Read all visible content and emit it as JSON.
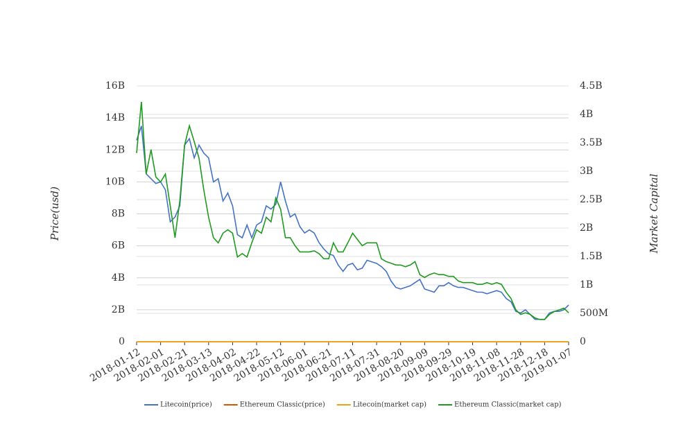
{
  "chart_data": {
    "type": "line",
    "y_label": "Price(usd)",
    "y2_label": "Market Capital",
    "x": [
      "2018-01-12",
      "2018-01-16",
      "2018-01-20",
      "2018-01-24",
      "2018-01-28",
      "2018-02-01",
      "2018-02-05",
      "2018-02-09",
      "2018-02-13",
      "2018-02-17",
      "2018-02-21",
      "2018-02-25",
      "2018-03-01",
      "2018-03-05",
      "2018-03-09",
      "2018-03-13",
      "2018-03-17",
      "2018-03-21",
      "2018-03-25",
      "2018-03-29",
      "2018-04-02",
      "2018-04-06",
      "2018-04-10",
      "2018-04-14",
      "2018-04-18",
      "2018-04-22",
      "2018-04-26",
      "2018-04-30",
      "2018-05-04",
      "2018-05-08",
      "2018-05-12",
      "2018-05-16",
      "2018-05-20",
      "2018-05-24",
      "2018-05-28",
      "2018-06-01",
      "2018-06-05",
      "2018-06-09",
      "2018-06-13",
      "2018-06-17",
      "2018-06-21",
      "2018-06-25",
      "2018-06-29",
      "2018-07-03",
      "2018-07-07",
      "2018-07-11",
      "2018-07-15",
      "2018-07-19",
      "2018-07-23",
      "2018-07-27",
      "2018-07-31",
      "2018-08-04",
      "2018-08-08",
      "2018-08-12",
      "2018-08-16",
      "2018-08-20",
      "2018-08-24",
      "2018-08-28",
      "2018-09-01",
      "2018-09-05",
      "2018-09-09",
      "2018-09-13",
      "2018-09-17",
      "2018-09-21",
      "2018-09-25",
      "2018-09-29",
      "2018-10-03",
      "2018-10-07",
      "2018-10-11",
      "2018-10-15",
      "2018-10-19",
      "2018-10-23",
      "2018-10-27",
      "2018-10-31",
      "2018-11-04",
      "2018-11-08",
      "2018-11-12",
      "2018-11-16",
      "2018-11-20",
      "2018-11-24",
      "2018-11-28",
      "2018-12-02",
      "2018-12-06",
      "2018-12-10",
      "2018-12-14",
      "2018-12-18",
      "2018-12-22",
      "2018-12-26",
      "2018-12-30",
      "2019-01-03",
      "2019-01-07"
    ],
    "xticks": [
      "2018-01-12",
      "2018-02-01",
      "2018-02-21",
      "2018-03-13",
      "2018-04-02",
      "2018-04-22",
      "2018-05-12",
      "2018-06-01",
      "2018-06-21",
      "2018-07-11",
      "2018-07-31",
      "2018-08-20",
      "2018-09-09",
      "2018-09-29",
      "2018-10-19",
      "2018-11-08",
      "2018-11-28",
      "2018-12-18",
      "2019-01-07"
    ],
    "ylim": [
      0,
      16000000000.0
    ],
    "yticks": [
      0,
      {
        "value": 2000000000.0,
        "label": "2B"
      },
      {
        "value": 4000000000.0,
        "label": "4B"
      },
      {
        "value": 6000000000.0,
        "label": "6B"
      },
      {
        "value": 8000000000.0,
        "label": "8B"
      },
      {
        "value": 10000000000.0,
        "label": "10B"
      },
      {
        "value": 12000000000.0,
        "label": "12B"
      },
      {
        "value": 14000000000.0,
        "label": "14B"
      },
      {
        "value": 16000000000.0,
        "label": "16B"
      }
    ],
    "y2lim": [
      0,
      4500000000.0
    ],
    "y2ticks": [
      0,
      {
        "value": 500000000.0,
        "label": "500M"
      },
      {
        "value": 1000000000.0,
        "label": "1B"
      },
      {
        "value": 1500000000.0,
        "label": "1.5B"
      },
      {
        "value": 2000000000.0,
        "label": "2B"
      },
      {
        "value": 2500000000.0,
        "label": "2.5B"
      },
      {
        "value": 3000000000.0,
        "label": "3B"
      },
      {
        "value": 3500000000.0,
        "label": "3.5B"
      },
      {
        "value": 4000000000.0,
        "label": "4B"
      },
      {
        "value": 4500000000.0,
        "label": "4.5B"
      }
    ],
    "grid": true,
    "legend": "bottom",
    "series": [
      {
        "name": "Litecoin(price)",
        "color": "#4472c4",
        "values": [
          12600000000.0,
          13500000000.0,
          10500000000.0,
          10200000000.0,
          9900000000.0,
          10000000000.0,
          9500000000.0,
          7500000000.0,
          7800000000.0,
          8500000000.0,
          12300000000.0,
          12700000000.0,
          11500000000.0,
          12300000000.0,
          11800000000.0,
          11500000000.0,
          10000000000.0,
          10200000000.0,
          8800000000.0,
          9300000000.0,
          8500000000.0,
          6700000000.0,
          6500000000.0,
          7300000000.0,
          6500000000.0,
          7300000000.0,
          7500000000.0,
          8500000000.0,
          8300000000.0,
          8600000000.0,
          10000000000.0,
          8800000000.0,
          7800000000.0,
          8000000000.0,
          7200000000.0,
          6800000000.0,
          7000000000.0,
          6800000000.0,
          6200000000.0,
          5800000000.0,
          5500000000.0,
          5400000000.0,
          4800000000.0,
          4400000000.0,
          4800000000.0,
          4900000000.0,
          4500000000.0,
          4600000000.0,
          5100000000.0,
          5000000000.0,
          4900000000.0,
          4700000000.0,
          4400000000.0,
          3800000000.0,
          3400000000.0,
          3300000000.0,
          3400000000.0,
          3500000000.0,
          3700000000.0,
          3900000000.0,
          3300000000.0,
          3200000000.0,
          3100000000.0,
          3500000000.0,
          3500000000.0,
          3700000000.0,
          3500000000.0,
          3400000000.0,
          3400000000.0,
          3300000000.0,
          3200000000.0,
          3100000000.0,
          3100000000.0,
          3000000000.0,
          3100000000.0,
          3200000000.0,
          3100000000.0,
          2700000000.0,
          2500000000.0,
          1900000000.0,
          1800000000.0,
          2000000000.0,
          1700000000.0,
          1400000000.0,
          1400000000.0,
          1400000000.0,
          1800000000.0,
          1900000000.0,
          1900000000.0,
          2000000000.0,
          2300000000.0
        ]
      },
      {
        "name": "Ethereum Classic(price)",
        "color": "#d35400",
        "values": [
          0,
          0,
          0,
          0,
          0,
          0,
          0,
          0,
          0,
          0,
          0,
          0,
          0,
          0,
          0,
          0,
          0,
          0,
          0,
          0,
          0,
          0,
          0,
          0,
          0,
          0,
          0,
          0,
          0,
          0,
          0,
          0,
          0,
          0,
          0,
          0,
          0,
          0,
          0,
          0,
          0,
          0,
          0,
          0,
          0,
          0,
          0,
          0,
          0,
          0,
          0,
          0,
          0,
          0,
          0,
          0,
          0,
          0,
          0,
          0,
          0,
          0,
          0,
          0,
          0,
          0,
          0,
          0,
          0,
          0,
          0,
          0,
          0,
          0,
          0,
          0,
          0,
          0,
          0,
          0,
          0,
          0,
          0,
          0,
          0,
          0,
          0,
          0,
          0,
          0,
          0
        ]
      },
      {
        "name": "Litecoin(market cap)",
        "color": "#f0a30a",
        "axis": "y2",
        "values": [
          0,
          0,
          0,
          0,
          0,
          0,
          0,
          0,
          0,
          0,
          0,
          0,
          0,
          0,
          0,
          0,
          0,
          0,
          0,
          0,
          0,
          0,
          0,
          0,
          0,
          0,
          0,
          0,
          0,
          0,
          0,
          0,
          0,
          0,
          0,
          0,
          0,
          0,
          0,
          0,
          0,
          0,
          0,
          0,
          0,
          0,
          0,
          0,
          0,
          0,
          0,
          0,
          0,
          0,
          0,
          0,
          0,
          0,
          0,
          0,
          0,
          0,
          0,
          0,
          0,
          0,
          0,
          0,
          0,
          0,
          0,
          0,
          0,
          0,
          0,
          0,
          0,
          0,
          0,
          0,
          0,
          0,
          0,
          0,
          0,
          0,
          0,
          0,
          0,
          0,
          0
        ]
      },
      {
        "name": "Ethereum Classic(market cap)",
        "color": "#1e9a1e",
        "axis": "y2",
        "values": [
          3320000000.0,
          4220000000.0,
          2950000000.0,
          3380000000.0,
          2900000000.0,
          2810000000.0,
          2950000000.0,
          2390000000.0,
          1830000000.0,
          2480000000.0,
          3460000000.0,
          3800000000.0,
          3520000000.0,
          3230000000.0,
          2670000000.0,
          2190000000.0,
          1830000000.0,
          1740000000.0,
          1910000000.0,
          1970000000.0,
          1910000000.0,
          1490000000.0,
          1550000000.0,
          1490000000.0,
          1740000000.0,
          1970000000.0,
          1910000000.0,
          2190000000.0,
          2110000000.0,
          2530000000.0,
          2330000000.0,
          1830000000.0,
          1830000000.0,
          1690000000.0,
          1580000000.0,
          1580000000.0,
          1580000000.0,
          1600000000.0,
          1550000000.0,
          1460000000.0,
          1460000000.0,
          1740000000.0,
          1580000000.0,
          1580000000.0,
          1740000000.0,
          1910000000.0,
          1800000000.0,
          1690000000.0,
          1740000000.0,
          1740000000.0,
          1740000000.0,
          1460000000.0,
          1410000000.0,
          1380000000.0,
          1350000000.0,
          1350000000.0,
          1320000000.0,
          1350000000.0,
          1410000000.0,
          1180000000.0,
          1130000000.0,
          1180000000.0,
          1210000000.0,
          1180000000.0,
          1180000000.0,
          1150000000.0,
          1150000000.0,
          1070000000.0,
          1040000000.0,
          1040000000.0,
          1040000000.0,
          1010000000.0,
          1010000000.0,
          1040000000.0,
          1010000000.0,
          1040000000.0,
          1010000000.0,
          870000000.0,
          760000000.0,
          560000000.0,
          480000000.0,
          510000000.0,
          480000000.0,
          420000000.0,
          390000000.0,
          390000000.0,
          480000000.0,
          530000000.0,
          560000000.0,
          590000000.0,
          510000000.0
        ]
      }
    ]
  }
}
